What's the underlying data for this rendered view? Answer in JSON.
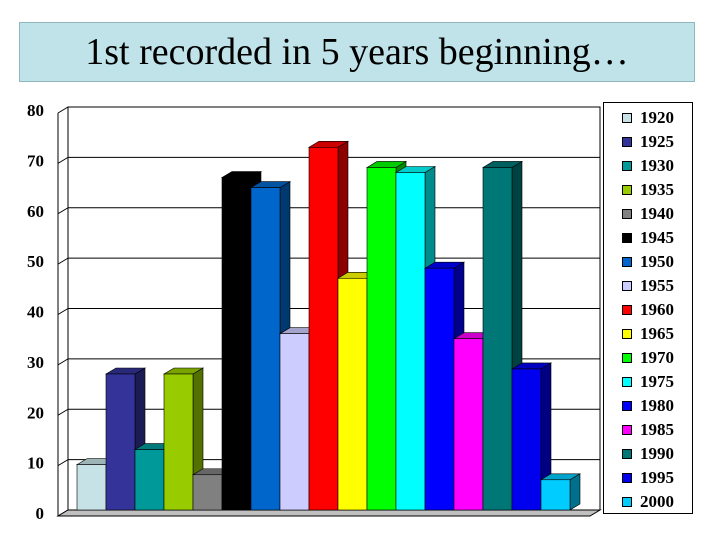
{
  "chart_data": {
    "type": "bar",
    "title": "1st recorded in 5 years beginning…",
    "ylim": [
      0,
      80
    ],
    "yticks": [
      "0",
      "10",
      "20",
      "30",
      "40",
      "50",
      "60",
      "70",
      "80"
    ],
    "grid": true,
    "legend_position": "right",
    "series": [
      {
        "name": "1920",
        "value": 9,
        "color": "#c6e2e6"
      },
      {
        "name": "1925",
        "value": 27,
        "color": "#333399"
      },
      {
        "name": "1930",
        "value": 12,
        "color": "#009999"
      },
      {
        "name": "1935",
        "value": 27,
        "color": "#99cc00"
      },
      {
        "name": "1940",
        "value": 7,
        "color": "#808080"
      },
      {
        "name": "1945",
        "value": 66,
        "color": "#000000"
      },
      {
        "name": "1950",
        "value": 64,
        "color": "#0066cc"
      },
      {
        "name": "1955",
        "value": 35,
        "color": "#ccccff"
      },
      {
        "name": "1960",
        "value": 72,
        "color": "#ff0000"
      },
      {
        "name": "1965",
        "value": 46,
        "color": "#ffff00"
      },
      {
        "name": "1970",
        "value": 68,
        "color": "#00ff00"
      },
      {
        "name": "1975",
        "value": 67,
        "color": "#00ffff"
      },
      {
        "name": "1980",
        "value": 48,
        "color": "#0000ff"
      },
      {
        "name": "1985",
        "value": 34,
        "color": "#ff00ff"
      },
      {
        "name": "1990",
        "value": 68,
        "color": "#007777"
      },
      {
        "name": "1995",
        "value": 28,
        "color": "#0000ee"
      },
      {
        "name": "2000",
        "value": 6,
        "color": "#00ccff"
      }
    ]
  }
}
